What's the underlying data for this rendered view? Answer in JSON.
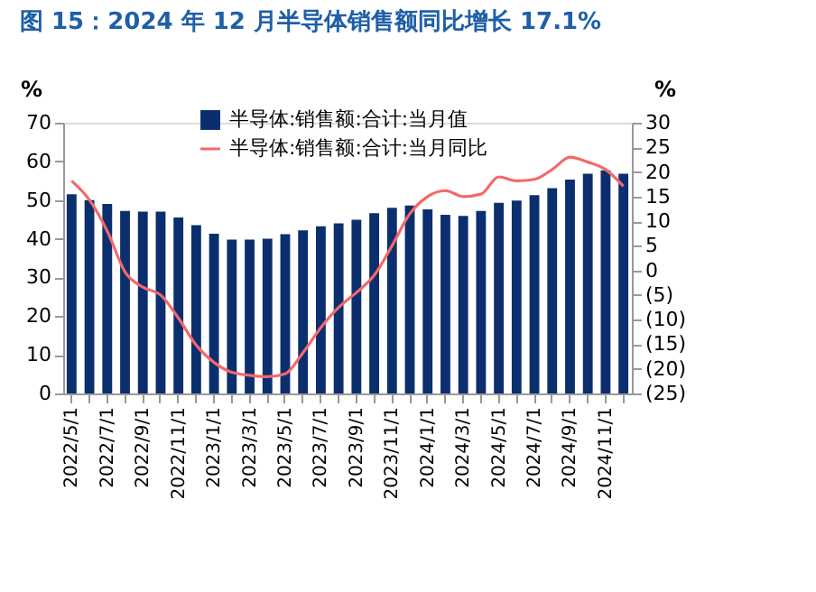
{
  "chart_data": {
    "type": "bar",
    "title": "图 15：2024 年 12 月半导体销售额同比增长 17.1%",
    "categories": [
      "2022/5/1",
      null,
      "2022/7/1",
      null,
      "2022/9/1",
      null,
      "2022/11/1",
      null,
      "2023/1/1",
      null,
      "2023/3/1",
      null,
      "2023/5/1",
      null,
      "2023/7/1",
      null,
      "2023/9/1",
      null,
      "2023/11/1",
      null,
      "2024/1/1",
      null,
      "2024/3/1",
      null,
      "2024/5/1",
      null,
      "2024/7/1",
      null,
      "2024/9/1",
      null,
      "2024/11/1",
      null
    ],
    "series": [
      {
        "name": "半导体:销售额:合计:当月值",
        "color": "#0b2f6e",
        "values": [
          51.5,
          50,
          49,
          47.2,
          47,
          47,
          45.5,
          43.5,
          41.3,
          39.8,
          39.8,
          40,
          41.2,
          42.2,
          43.2,
          44,
          44.9,
          46.6,
          48.0,
          48.6,
          47.6,
          46.2,
          45.9,
          47.2,
          49.3,
          49.9,
          51.3,
          53.1,
          55.3,
          56.8,
          57.7,
          56.8
        ]
      },
      {
        "name": "半导体:销售额:合计:当月同比",
        "type": "line",
        "axis": "y2",
        "color": "#f4686a",
        "values": [
          18.2,
          14.3,
          8,
          -0.3,
          -3.4,
          -5,
          -9.7,
          -15.2,
          -18.7,
          -20.7,
          -21.3,
          -21.6,
          -21,
          -16.7,
          -11.6,
          -7.5,
          -4.5,
          -1,
          5,
          11.5,
          15,
          16.2,
          15,
          15.5,
          19,
          18.2,
          18.5,
          20.5,
          23,
          22,
          20.5,
          17.1
        ]
      }
    ],
    "ylabel": "%",
    "y2label": "%",
    "ylim": [
      0,
      70
    ],
    "yticks": [
      0,
      10,
      20,
      30,
      40,
      50,
      60,
      70
    ],
    "y2lim": [
      -25,
      30
    ],
    "y2ticks": [
      {
        "value": -25,
        "label": "(25)"
      },
      {
        "value": -20,
        "label": "(20)"
      },
      {
        "value": -15,
        "label": "(15)"
      },
      {
        "value": -10,
        "label": "(10)"
      },
      {
        "value": -5,
        "label": "(5)"
      },
      0,
      5,
      10,
      15,
      20,
      25,
      30
    ],
    "legend": "top right",
    "grid": false
  }
}
